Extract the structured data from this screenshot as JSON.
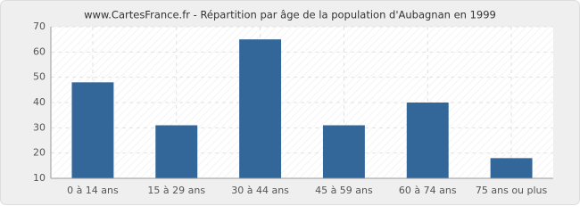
{
  "chart_data": {
    "type": "bar",
    "title": "www.CartesFrance.fr - Répartition par âge de la population d'Aubagnan en 1999",
    "categories": [
      "0 à 14 ans",
      "15 à 29 ans",
      "30 à 44 ans",
      "45 à 59 ans",
      "60 à 74 ans",
      "75 ans ou plus"
    ],
    "values": [
      48,
      31,
      65,
      31,
      40,
      18
    ],
    "color": "#336699",
    "ylim": [
      10,
      70
    ],
    "yticks": [
      10,
      20,
      30,
      40,
      50,
      60,
      70
    ],
    "grid": true
  }
}
